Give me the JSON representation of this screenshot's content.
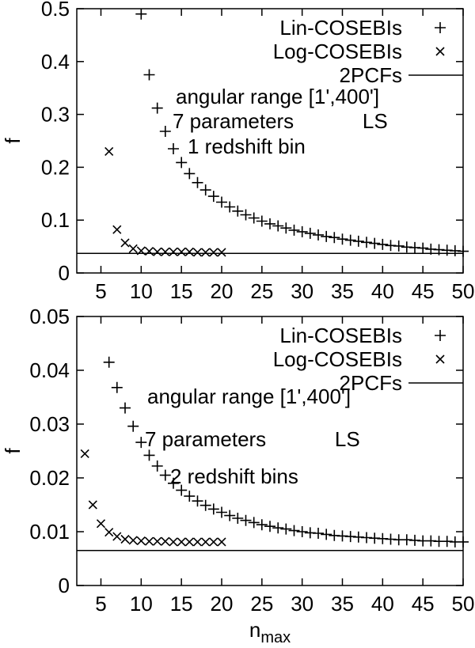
{
  "colors": {
    "foreground": "#000000",
    "background": "#ffffff"
  },
  "chart_data": [
    {
      "type": "scatter",
      "panel": "top",
      "ylabel": "f",
      "xlabel_main": "",
      "xlabel_sub": "",
      "xlim": [
        2,
        50
      ],
      "ylim": [
        0,
        0.5
      ],
      "xtick_values": [
        5,
        10,
        15,
        20,
        25,
        30,
        35,
        40,
        45,
        50
      ],
      "xtick_labels": [
        "5",
        "10",
        "15",
        "20",
        "25",
        "30",
        "35",
        "40",
        "45",
        "50"
      ],
      "ytick_values": [
        0,
        0.1,
        0.2,
        0.3,
        0.4,
        0.5
      ],
      "ytick_labels": [
        "0",
        "0.1",
        "0.2",
        "0.3",
        "0.4",
        "0.5"
      ],
      "legend": [
        {
          "label": "Lin-COSEBIs",
          "marker": "plus"
        },
        {
          "label": "Log-COSEBIs",
          "marker": "cross"
        },
        {
          "label": "2PCFs",
          "marker": "line"
        }
      ],
      "annotations": [
        "angular range [1',400']",
        "7 parameters            LS",
        "1 redshift bin"
      ],
      "series": [
        {
          "name": "Lin-COSEBIs",
          "marker": "plus",
          "points": [
            [
              10,
              0.49
            ],
            [
              11,
              0.375
            ],
            [
              12,
              0.312
            ],
            [
              13,
              0.268
            ],
            [
              14,
              0.235
            ],
            [
              15,
              0.209
            ],
            [
              16,
              0.188
            ],
            [
              17,
              0.171
            ],
            [
              18,
              0.157
            ],
            [
              19,
              0.145
            ],
            [
              20,
              0.134
            ],
            [
              21,
              0.125
            ],
            [
              22,
              0.117
            ],
            [
              23,
              0.11
            ],
            [
              24,
              0.104
            ],
            [
              25,
              0.098
            ],
            [
              26,
              0.093
            ],
            [
              27,
              0.089
            ],
            [
              28,
              0.085
            ],
            [
              29,
              0.081
            ],
            [
              30,
              0.078
            ],
            [
              31,
              0.075
            ],
            [
              32,
              0.072
            ],
            [
              33,
              0.069
            ],
            [
              34,
              0.067
            ],
            [
              35,
              0.064
            ],
            [
              36,
              0.062
            ],
            [
              37,
              0.06
            ],
            [
              38,
              0.058
            ],
            [
              39,
              0.056
            ],
            [
              40,
              0.054
            ],
            [
              41,
              0.052
            ],
            [
              42,
              0.051
            ],
            [
              43,
              0.049
            ],
            [
              44,
              0.048
            ],
            [
              45,
              0.047
            ],
            [
              46,
              0.045
            ],
            [
              47,
              0.044
            ],
            [
              48,
              0.043
            ],
            [
              49,
              0.042
            ],
            [
              50,
              0.041
            ]
          ]
        },
        {
          "name": "Log-COSEBIs",
          "marker": "cross",
          "points": [
            [
              6,
              0.23
            ],
            [
              7,
              0.082
            ],
            [
              8,
              0.057
            ],
            [
              9,
              0.046
            ],
            [
              10,
              0.042
            ],
            [
              11,
              0.041
            ],
            [
              12,
              0.04
            ],
            [
              13,
              0.04
            ],
            [
              14,
              0.04
            ],
            [
              15,
              0.04
            ],
            [
              16,
              0.04
            ],
            [
              17,
              0.039
            ],
            [
              18,
              0.039
            ],
            [
              19,
              0.039
            ],
            [
              20,
              0.039
            ]
          ]
        },
        {
          "name": "2PCFs",
          "type": "hline",
          "y": 0.037
        }
      ]
    },
    {
      "type": "scatter",
      "panel": "bottom",
      "ylabel": "f",
      "xlabel_main": "n",
      "xlabel_sub": "max",
      "xlim": [
        2,
        50
      ],
      "ylim": [
        0,
        0.05
      ],
      "xtick_values": [
        5,
        10,
        15,
        20,
        25,
        30,
        35,
        40,
        45,
        50
      ],
      "xtick_labels": [
        "5",
        "10",
        "15",
        "20",
        "25",
        "30",
        "35",
        "40",
        "45",
        "50"
      ],
      "ytick_values": [
        0,
        0.01,
        0.02,
        0.03,
        0.04,
        0.05
      ],
      "ytick_labels": [
        "0",
        "0.01",
        "0.02",
        "0.03",
        "0.04",
        "0.05"
      ],
      "legend": [
        {
          "label": "Lin-COSEBIs",
          "marker": "plus"
        },
        {
          "label": "Log-COSEBIs",
          "marker": "cross"
        },
        {
          "label": "2PCFs",
          "marker": "line"
        }
      ],
      "annotations": [
        "angular range [1',400']",
        "7 parameters            LS",
        "2 redshift bins"
      ],
      "series": [
        {
          "name": "Lin-COSEBIs",
          "marker": "plus",
          "points": [
            [
              6,
              0.0415
            ],
            [
              7,
              0.0368
            ],
            [
              8,
              0.033
            ],
            [
              9,
              0.0296
            ],
            [
              10,
              0.0266
            ],
            [
              11,
              0.0242
            ],
            [
              12,
              0.0222
            ],
            [
              13,
              0.0205
            ],
            [
              14,
              0.019
            ],
            [
              15,
              0.0177
            ],
            [
              16,
              0.0166
            ],
            [
              17,
              0.0157
            ],
            [
              18,
              0.0149
            ],
            [
              19,
              0.0142
            ],
            [
              20,
              0.0136
            ],
            [
              21,
              0.013
            ],
            [
              22,
              0.0125
            ],
            [
              23,
              0.0121
            ],
            [
              24,
              0.0117
            ],
            [
              25,
              0.0113
            ],
            [
              26,
              0.011
            ],
            [
              27,
              0.0107
            ],
            [
              28,
              0.0105
            ],
            [
              29,
              0.0102
            ],
            [
              30,
              0.01
            ],
            [
              31,
              0.0098
            ],
            [
              32,
              0.0097
            ],
            [
              33,
              0.0095
            ],
            [
              34,
              0.0093
            ],
            [
              35,
              0.0092
            ],
            [
              36,
              0.0091
            ],
            [
              37,
              0.009
            ],
            [
              38,
              0.0089
            ],
            [
              39,
              0.0088
            ],
            [
              40,
              0.0087
            ],
            [
              41,
              0.0086
            ],
            [
              42,
              0.0085
            ],
            [
              43,
              0.0085
            ],
            [
              44,
              0.0084
            ],
            [
              45,
              0.0083
            ],
            [
              46,
              0.0083
            ],
            [
              47,
              0.0082
            ],
            [
              48,
              0.0082
            ],
            [
              49,
              0.0081
            ],
            [
              50,
              0.0081
            ]
          ]
        },
        {
          "name": "Log-COSEBIs",
          "marker": "cross",
          "points": [
            [
              3,
              0.0245
            ],
            [
              4,
              0.015
            ],
            [
              5,
              0.0115
            ],
            [
              6,
              0.0099
            ],
            [
              7,
              0.0091
            ],
            [
              8,
              0.0086
            ],
            [
              9,
              0.0084
            ],
            [
              10,
              0.0083
            ],
            [
              11,
              0.0082
            ],
            [
              12,
              0.0082
            ],
            [
              13,
              0.0082
            ],
            [
              14,
              0.0081
            ],
            [
              15,
              0.0081
            ],
            [
              16,
              0.0081
            ],
            [
              17,
              0.0081
            ],
            [
              18,
              0.0081
            ],
            [
              19,
              0.0081
            ],
            [
              20,
              0.0081
            ]
          ]
        },
        {
          "name": "2PCFs",
          "type": "hline",
          "y": 0.0065
        }
      ]
    }
  ]
}
